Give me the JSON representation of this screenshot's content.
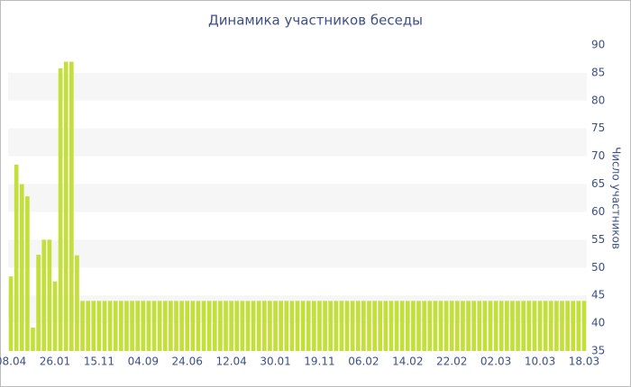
{
  "chart_data": {
    "type": "bar",
    "title": "Динамика участников беседы",
    "y_label": "Число участников",
    "color": "#c2df3a",
    "band_color": "#f6f6f6",
    "bands": true,
    "ylim": [
      35,
      90
    ],
    "yticks": [
      35,
      40,
      45,
      50,
      55,
      60,
      65,
      70,
      75,
      80,
      85,
      90
    ],
    "categories": [
      "08.04",
      null,
      null,
      null,
      null,
      null,
      null,
      null,
      "26.01",
      null,
      null,
      null,
      null,
      null,
      null,
      null,
      "15.11",
      null,
      null,
      null,
      null,
      null,
      null,
      null,
      "04.09",
      null,
      null,
      null,
      null,
      null,
      null,
      null,
      "24.06",
      null,
      null,
      null,
      null,
      null,
      null,
      null,
      "12.04",
      null,
      null,
      null,
      null,
      null,
      null,
      null,
      "30.01",
      null,
      null,
      null,
      null,
      null,
      null,
      null,
      "19.11",
      null,
      null,
      null,
      null,
      null,
      null,
      null,
      "06.02",
      null,
      null,
      null,
      null,
      null,
      null,
      null,
      "14.02",
      null,
      null,
      null,
      null,
      null,
      null,
      null,
      "22.02",
      null,
      null,
      null,
      null,
      null,
      null,
      null,
      "02.03",
      null,
      null,
      null,
      null,
      null,
      null,
      null,
      "10.03",
      null,
      null,
      null,
      null,
      null,
      null,
      null,
      "18.03"
    ],
    "values": [
      48.4,
      68.5,
      65,
      62.8,
      39.2,
      52.3,
      55,
      55,
      47.5,
      85.8,
      87,
      87,
      52.2,
      44,
      44,
      44,
      44,
      44,
      44,
      44,
      44,
      44,
      44,
      44,
      44,
      44,
      44,
      44,
      44,
      44,
      44,
      44,
      44,
      44,
      44,
      44,
      44,
      44,
      44,
      44,
      44,
      44,
      44,
      44,
      44,
      44,
      44,
      44,
      44,
      44,
      44,
      44,
      44,
      44,
      44,
      44,
      44,
      44,
      44,
      44,
      44,
      44,
      44,
      44,
      44,
      44,
      44,
      44,
      44,
      44,
      44,
      44,
      44,
      44,
      44,
      44,
      44,
      44,
      44,
      44,
      44,
      44,
      44,
      44,
      44,
      44,
      44,
      44,
      44,
      44,
      44,
      44,
      44,
      44,
      44,
      44,
      44,
      44,
      44,
      44,
      44,
      44,
      44,
      44,
      44
    ]
  }
}
